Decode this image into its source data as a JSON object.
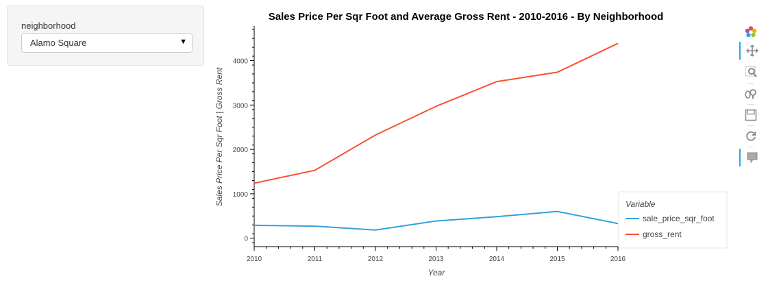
{
  "widget": {
    "label": "neighborhood",
    "selected": "Alamo Square"
  },
  "toolbar": {
    "tools": [
      {
        "name": "bokeh-logo"
      },
      {
        "name": "pan-icon"
      },
      {
        "name": "box-zoom-icon"
      },
      {
        "name": "wheel-zoom-icon"
      },
      {
        "name": "save-icon"
      },
      {
        "name": "reset-icon"
      },
      {
        "name": "hover-icon"
      }
    ]
  },
  "colors": {
    "sale_price_sqr_foot": "#30a2da",
    "gross_rent": "#fc4f30"
  },
  "chart_data": {
    "type": "line",
    "title": "Sales Price Per Sqr Foot and Average Gross Rent - 2010-2016 - By Neighborhood",
    "xlabel": "Year",
    "ylabel": "Sales Price Per Sqr Foot | Gross Rent",
    "x": [
      2010,
      2011,
      2012,
      2013,
      2014,
      2015,
      2016
    ],
    "xlim": [
      2010,
      2016
    ],
    "ylim": [
      -190,
      4780
    ],
    "yticks": [
      0,
      1000,
      2000,
      3000,
      4000
    ],
    "grid": false,
    "legend_title": "Variable",
    "legend_position": "right",
    "series": [
      {
        "name": "sale_price_sqr_foot",
        "color": "#30a2da",
        "values": [
          291,
          272,
          183,
          388,
          485,
          603,
          330
        ]
      },
      {
        "name": "gross_rent",
        "color": "#fc4f30",
        "values": [
          1239,
          1530,
          2324,
          2971,
          3528,
          3739,
          4390
        ]
      }
    ]
  }
}
